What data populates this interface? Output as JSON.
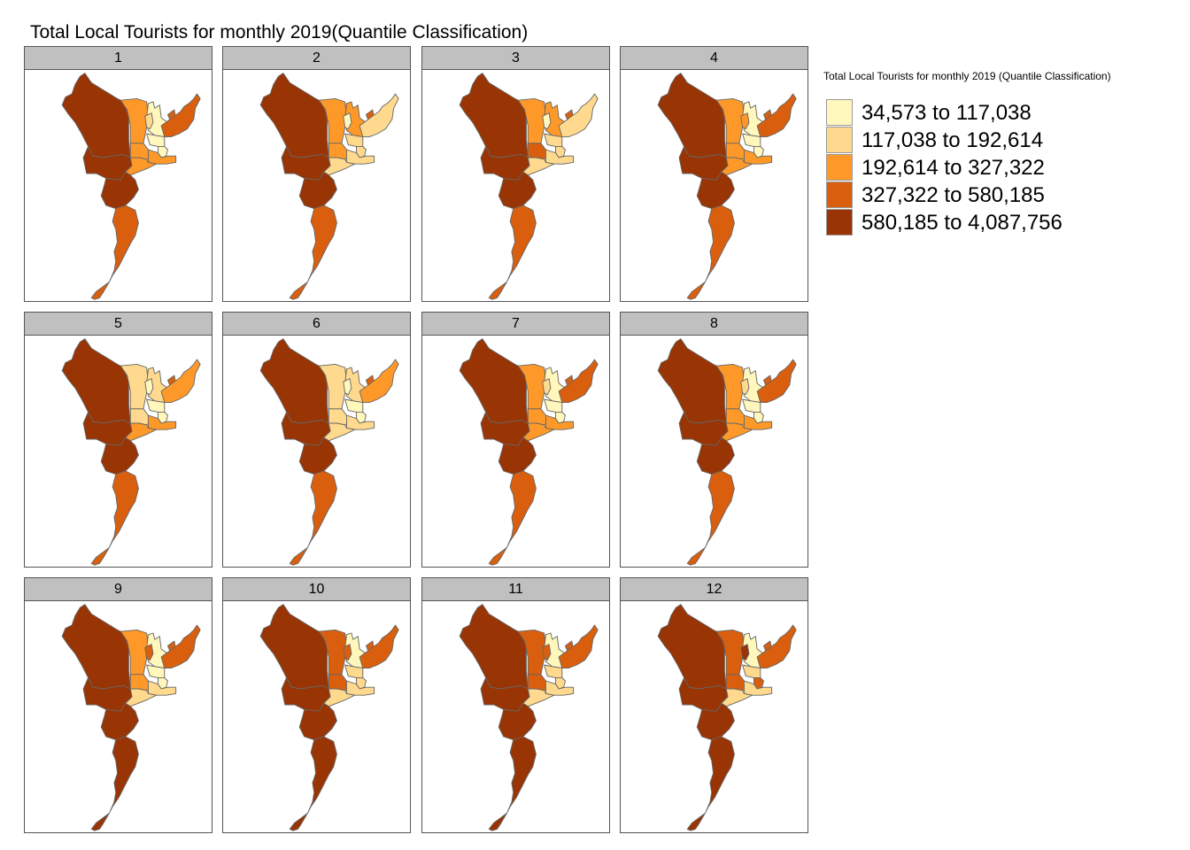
{
  "title": "Total Local Tourists for monthly 2019(Quantile Classification)",
  "legend": {
    "title": "Total Local Tourists for monthly 2019 (Quantile Classification)",
    "classes": [
      {
        "label": "34,573 to 117,038",
        "color": "#fff7bc"
      },
      {
        "label": "117,038 to 192,614",
        "color": "#fed98e"
      },
      {
        "label": "192,614 to 327,322",
        "color": "#fe9929"
      },
      {
        "label": "327,322 to 580,185",
        "color": "#d95f0e"
      },
      {
        "label": "580,185 to 4,087,756",
        "color": "#993404"
      }
    ]
  },
  "panels": [
    {
      "label": "1",
      "classes": [
        4,
        2,
        0,
        1,
        3,
        3,
        2,
        4,
        0,
        0,
        2,
        2,
        4,
        3
      ]
    },
    {
      "label": "2",
      "classes": [
        4,
        2,
        2,
        0,
        3,
        1,
        2,
        4,
        1,
        1,
        1,
        1,
        4,
        3
      ]
    },
    {
      "label": "3",
      "classes": [
        4,
        2,
        2,
        0,
        3,
        1,
        3,
        4,
        1,
        1,
        1,
        1,
        4,
        3
      ]
    },
    {
      "label": "4",
      "classes": [
        4,
        2,
        0,
        2,
        3,
        3,
        2,
        4,
        0,
        0,
        2,
        2,
        4,
        3
      ]
    },
    {
      "label": "5",
      "classes": [
        4,
        1,
        1,
        0,
        3,
        2,
        1,
        4,
        0,
        0,
        2,
        2,
        4,
        3
      ]
    },
    {
      "label": "6",
      "classes": [
        4,
        1,
        1,
        0,
        3,
        2,
        1,
        4,
        0,
        0,
        1,
        1,
        4,
        3
      ]
    },
    {
      "label": "7",
      "classes": [
        4,
        2,
        0,
        1,
        3,
        3,
        2,
        4,
        0,
        0,
        2,
        2,
        4,
        3
      ]
    },
    {
      "label": "8",
      "classes": [
        4,
        2,
        0,
        1,
        3,
        3,
        2,
        4,
        0,
        0,
        2,
        2,
        4,
        3
      ]
    },
    {
      "label": "9",
      "classes": [
        4,
        2,
        0,
        3,
        3,
        3,
        2,
        4,
        0,
        0,
        1,
        1,
        4,
        4
      ]
    },
    {
      "label": "10",
      "classes": [
        4,
        3,
        0,
        3,
        3,
        3,
        3,
        4,
        1,
        1,
        1,
        1,
        4,
        4
      ]
    },
    {
      "label": "11",
      "classes": [
        4,
        3,
        0,
        3,
        3,
        3,
        3,
        4,
        1,
        1,
        1,
        1,
        4,
        4
      ]
    },
    {
      "label": "12",
      "classes": [
        4,
        3,
        0,
        4,
        3,
        3,
        3,
        4,
        1,
        3,
        1,
        1,
        4,
        4
      ]
    }
  ]
}
